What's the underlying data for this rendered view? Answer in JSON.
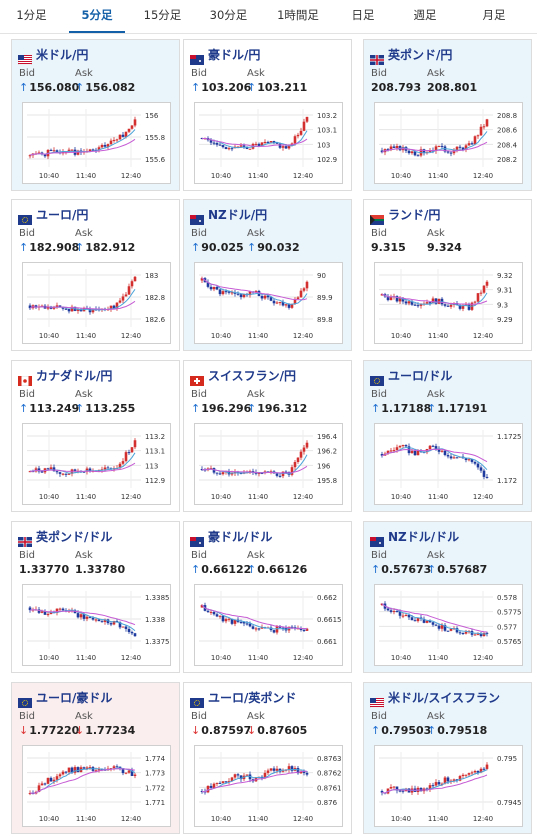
{
  "tabs": [
    {
      "label": "1分足"
    },
    {
      "label": "5分足",
      "active": true
    },
    {
      "label": "15分足"
    },
    {
      "label": "30分足"
    },
    {
      "label": "1時間足"
    },
    {
      "label": "日足"
    },
    {
      "label": "週足"
    },
    {
      "label": "月足"
    }
  ],
  "colors": {
    "accent": "#1460a8",
    "bull": "#d32f2f",
    "bear": "#1f3a9e",
    "ma_fast": "#4aa3d8",
    "ma_slow": "#c65bd4",
    "up_arrow": "#1f6fd0",
    "down_arrow": "#dd3333"
  },
  "quote_labels": {
    "bid": "Bid",
    "ask": "Ask"
  },
  "x_ticks": [
    "10:40",
    "11:40",
    "12:40"
  ],
  "cards": [
    {
      "pair": "米ドル/円",
      "flag": "us-jp-flag-icon",
      "bg": "up",
      "dir": "up",
      "bid": "156.080",
      "ask": "156.082",
      "yticks": [
        "156",
        "155.8",
        "155.6"
      ],
      "seed": 1,
      "trend": [
        0.15,
        0.2,
        0.25,
        0.2,
        0.3,
        0.45,
        0.85
      ]
    },
    {
      "pair": "豪ドル/円",
      "flag": "au-jp-flag-icon",
      "bg": "flat",
      "dir": "up",
      "bid": "103.206",
      "ask": "103.211",
      "yticks": [
        "103.2",
        "103.1",
        "103",
        "102.9"
      ],
      "seed": 2,
      "trend": [
        0.5,
        0.35,
        0.3,
        0.35,
        0.4,
        0.3,
        0.9
      ]
    },
    {
      "pair": "英ポンド/円",
      "flag": "gb-jp-flag-icon",
      "bg": "up",
      "dir": "none",
      "bid": "208.793",
      "ask": "208.801",
      "yticks": [
        "208.8",
        "208.6",
        "208.4",
        "208.2"
      ],
      "seed": 3,
      "trend": [
        0.25,
        0.3,
        0.2,
        0.3,
        0.25,
        0.35,
        0.85
      ]
    },
    {
      "pair": "ユーロ/円",
      "flag": "eu-jp-flag-icon",
      "bg": "flat",
      "dir": "up",
      "bid": "182.908",
      "ask": "182.912",
      "yticks": [
        "183",
        "182.8",
        "182.6"
      ],
      "seed": 4,
      "trend": [
        0.35,
        0.3,
        0.3,
        0.25,
        0.3,
        0.35,
        0.9
      ]
    },
    {
      "pair": "NZドル/円",
      "flag": "nz-jp-flag-icon",
      "bg": "up",
      "dir": "up",
      "bid": "90.025",
      "ask": "90.032",
      "yticks": [
        "90",
        "89.9",
        "89.8"
      ],
      "seed": 5,
      "trend": [
        0.85,
        0.6,
        0.55,
        0.6,
        0.45,
        0.35,
        0.8
      ]
    },
    {
      "pair": "ランド/円",
      "flag": "za-jp-flag-icon",
      "bg": "flat",
      "dir": "none",
      "bid": "9.315",
      "ask": "9.324",
      "yticks": [
        "9.32",
        "9.31",
        "9.3",
        "9.29"
      ],
      "seed": 6,
      "trend": [
        0.55,
        0.45,
        0.4,
        0.45,
        0.35,
        0.3,
        0.8
      ]
    },
    {
      "pair": "カナダドル/円",
      "flag": "ca-jp-flag-icon",
      "bg": "flat",
      "dir": "up",
      "bid": "113.249",
      "ask": "113.255",
      "yticks": [
        "113.2",
        "113.1",
        "113",
        "112.9"
      ],
      "seed": 7,
      "trend": [
        0.25,
        0.3,
        0.2,
        0.3,
        0.25,
        0.35,
        0.85
      ]
    },
    {
      "pair": "スイスフラン/円",
      "flag": "ch-jp-flag-icon",
      "bg": "flat",
      "dir": "up",
      "bid": "196.296",
      "ask": "196.312",
      "yticks": [
        "196.4",
        "196.2",
        "196",
        "195.8"
      ],
      "seed": 8,
      "trend": [
        0.3,
        0.25,
        0.2,
        0.25,
        0.2,
        0.2,
        0.8
      ]
    },
    {
      "pair": "ユーロ/ドル",
      "flag": "eu-us-flag-icon",
      "bg": "up",
      "dir": "up",
      "bid": "1.17188",
      "ask": "1.17191",
      "yticks": [
        "1.1725",
        "1.172"
      ],
      "seed": 9,
      "trend": [
        0.6,
        0.75,
        0.6,
        0.75,
        0.55,
        0.5,
        0.1
      ]
    },
    {
      "pair": "英ポンド/ドル",
      "flag": "gb-us-flag-icon",
      "bg": "flat",
      "dir": "none",
      "bid": "1.33770",
      "ask": "1.33780",
      "yticks": [
        "1.3385",
        "1.338",
        "1.3375"
      ],
      "seed": 10,
      "trend": [
        0.75,
        0.65,
        0.7,
        0.55,
        0.5,
        0.45,
        0.15
      ]
    },
    {
      "pair": "豪ドル/ドル",
      "flag": "au-us-flag-icon",
      "bg": "flat",
      "dir": "up",
      "bid": "0.66122",
      "ask": "0.66126",
      "yticks": [
        "0.662",
        "0.6615",
        "0.661"
      ],
      "seed": 11,
      "trend": [
        0.75,
        0.55,
        0.45,
        0.35,
        0.3,
        0.35,
        0.3
      ]
    },
    {
      "pair": "NZドル/ドル",
      "flag": "nz-us-flag-icon",
      "bg": "up",
      "dir": "up",
      "bid": "0.57673",
      "ask": "0.57687",
      "yticks": [
        "0.578",
        "0.5775",
        "0.577",
        "0.5765"
      ],
      "seed": 12,
      "trend": [
        0.8,
        0.6,
        0.5,
        0.4,
        0.3,
        0.25,
        0.2
      ]
    },
    {
      "pair": "ユーロ/豪ドル",
      "flag": "eu-au-flag-icon",
      "bg": "down",
      "dir": "down",
      "bid": "1.77220",
      "ask": "1.77234",
      "yticks": [
        "1.774",
        "1.773",
        "1.772",
        "1.771"
      ],
      "seed": 13,
      "trend": [
        0.25,
        0.5,
        0.7,
        0.75,
        0.7,
        0.75,
        0.6
      ]
    },
    {
      "pair": "ユーロ/英ポンド",
      "flag": "eu-gb-flag-icon",
      "bg": "flat",
      "dir": "down",
      "bid": "0.87597",
      "ask": "0.87605",
      "yticks": [
        "0.8763",
        "0.8762",
        "0.8761",
        "0.876"
      ],
      "seed": 14,
      "trend": [
        0.3,
        0.45,
        0.6,
        0.55,
        0.7,
        0.75,
        0.6
      ]
    },
    {
      "pair": "米ドル/スイスフラン",
      "flag": "us-ch-flag-icon",
      "bg": "up",
      "dir": "up",
      "bid": "0.79503",
      "ask": "0.79518",
      "yticks": [
        "0.795",
        "0.7945"
      ],
      "seed": 15,
      "trend": [
        0.3,
        0.35,
        0.3,
        0.45,
        0.55,
        0.6,
        0.8
      ]
    }
  ]
}
